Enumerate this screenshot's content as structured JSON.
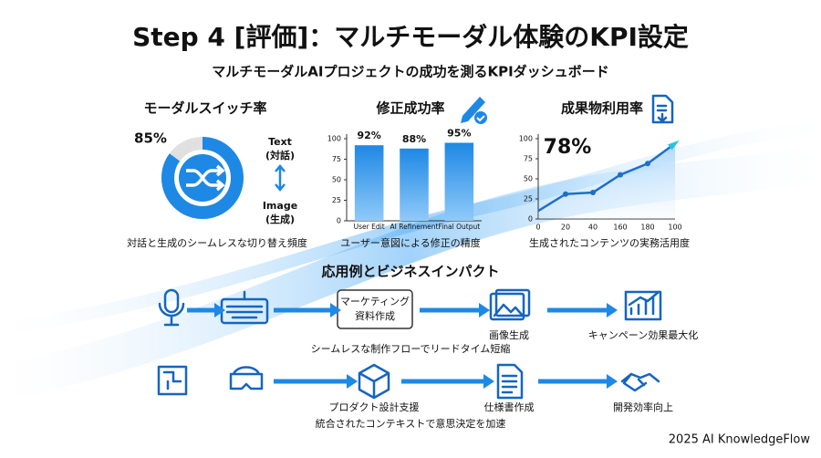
{
  "title": "Step 4 [評価]：マルチモーダル体験のKPI設定",
  "subtitle": "マルチモーダルAIプロジェクトの成功を測るKPIダッシュボード",
  "modal_switch": {
    "type": "donut",
    "title": "モーダルスイッチ率",
    "value": 85,
    "value_label": "85%",
    "max": 100,
    "top_label": [
      "Text",
      "(対話)"
    ],
    "bottom_label": [
      "Image",
      "(生成)"
    ],
    "caption": "対話と生成のシームレスな切り替え頻度",
    "color": "#1e88e5"
  },
  "correction": {
    "type": "bar",
    "title": "修正成功率",
    "categories": [
      "User Edit",
      "AI Refinement",
      "Final Output"
    ],
    "values": [
      92,
      88,
      95
    ],
    "value_labels": [
      "92%",
      "88%",
      "95%"
    ],
    "ylim": [
      0,
      100
    ],
    "yticks": [
      0,
      25,
      50,
      75,
      100
    ],
    "caption": "ユーザー意図による修正の精度",
    "color": "#1e88e5"
  },
  "output_usage": {
    "type": "line",
    "title": "成果物利用率",
    "headline": "78%",
    "headline_value": 78,
    "categories": [
      "0",
      "20",
      "40",
      "160",
      "180",
      "100"
    ],
    "values": [
      10,
      31,
      33,
      55,
      69,
      94
    ],
    "ylim": [
      0,
      100
    ],
    "yticks": [
      0,
      25,
      50,
      75,
      100
    ],
    "caption": "生成されたコンテンツの実務活用度",
    "color": "#1e6fc9"
  },
  "impact": {
    "title": "応用例とビジネスインパクト",
    "row1": {
      "box": [
        "マーケティング",
        "資料作成"
      ],
      "step2": "画像生成",
      "step3": "キャンペーン効果最大化",
      "caption": "シームレスな制作フローでリードタイム短縮"
    },
    "row2": {
      "step1": "プロダクト設計支援",
      "step2": "仕様書作成",
      "step3": "開発効率向上",
      "caption": "統合されたコンテキストで意思決定を加速"
    }
  },
  "footer": "2025 AI KnowledgeFlow"
}
